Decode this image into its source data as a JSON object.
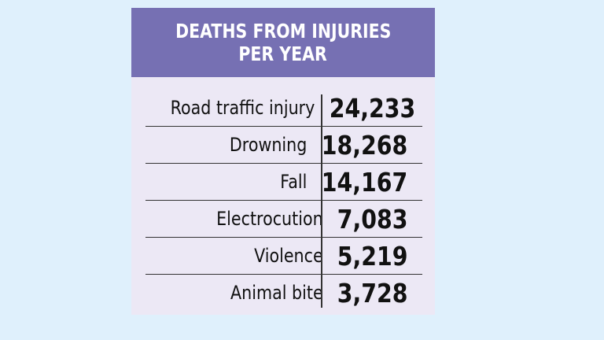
{
  "card": {
    "title_line1": "DEATHS FROM INJURIES",
    "title_line2": "PER YEAR",
    "rows": [
      {
        "label": "Road traffic injury",
        "value": "24,233"
      },
      {
        "label": "Drowning",
        "value": "18,268"
      },
      {
        "label": "Fall",
        "value": "14,167"
      },
      {
        "label": "Electrocution",
        "value": "7,083"
      },
      {
        "label": "Violence",
        "value": "5,219"
      },
      {
        "label": "Animal bite",
        "value": "3,728"
      }
    ]
  },
  "colors": {
    "background": "#dff0fc",
    "header": "#7670b3",
    "card_body": "#ece8f5"
  }
}
